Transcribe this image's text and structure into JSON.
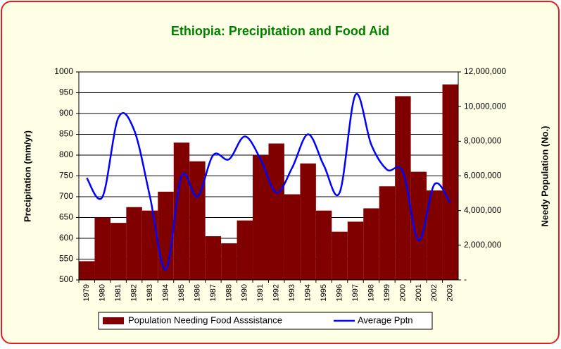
{
  "chart_data": {
    "type": "bar_line",
    "title": "Ethiopia: Precipitation and Food Aid",
    "y_label": "Precipitation (mm/yr)",
    "y2_label": "Needy Population (No.)",
    "categories": [
      "1979",
      "1980",
      "1981",
      "1982",
      "1983",
      "1984",
      "1985",
      "1986",
      "1987",
      "1988",
      "1990",
      "1991",
      "1992",
      "1993",
      "1994",
      "1995",
      "1996",
      "1997",
      "1998",
      "1999",
      "2000",
      "2001",
      "2002",
      "2003"
    ],
    "series": [
      {
        "name": "Population Needing Food Asssistance",
        "type": "bar",
        "axis": "y2",
        "color": "#800000",
        "values": [
          1080000,
          3600000,
          3290000,
          4200000,
          4000000,
          5090000,
          7920000,
          6840000,
          2520000,
          2110000,
          3430000,
          7200000,
          7870000,
          4940000,
          6720000,
          4000000,
          2780000,
          3360000,
          4130000,
          5400000,
          10600000,
          6240000,
          5160000,
          11280000
        ]
      },
      {
        "name": "Average Pptn",
        "type": "line",
        "axis": "y",
        "color": "#0000ff",
        "values": [
          745,
          700,
          890,
          860,
          700,
          525,
          750,
          700,
          800,
          790,
          845,
          790,
          710,
          770,
          850,
          775,
          710,
          945,
          825,
          765,
          760,
          595,
          730,
          685
        ]
      }
    ],
    "ylim": [
      500,
      1000
    ],
    "yticks": [
      500,
      550,
      600,
      650,
      700,
      750,
      800,
      850,
      900,
      950,
      1000
    ],
    "y2lim": [
      0,
      12000000
    ],
    "y2ticks": [
      {
        "value": 0,
        "label": "-"
      },
      {
        "value": 2000000,
        "label": "2,000,000"
      },
      {
        "value": 4000000,
        "label": "4,000,000"
      },
      {
        "value": 6000000,
        "label": "6,000,000"
      },
      {
        "value": 8000000,
        "label": "8,000,000"
      },
      {
        "value": 10000000,
        "label": "10,000,000"
      },
      {
        "value": 12000000,
        "label": "12,000,000"
      }
    ],
    "grid": true,
    "legend": "bottom"
  }
}
